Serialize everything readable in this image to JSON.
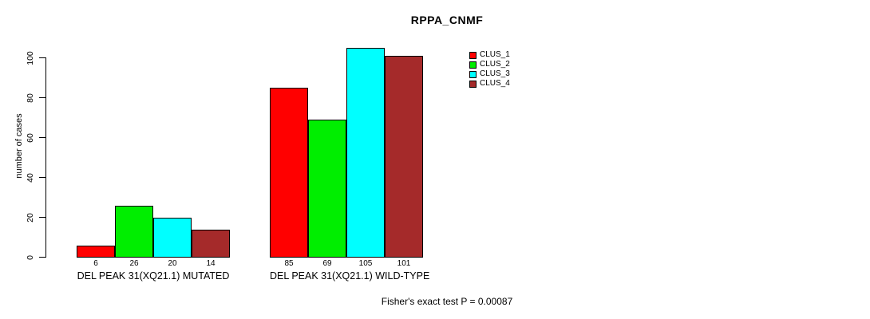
{
  "title": "RPPA_CNMF",
  "y_axis": {
    "label": "number of cases",
    "ticks": [
      0,
      20,
      40,
      60,
      80,
      100
    ]
  },
  "footer": {
    "annotation": "Fisher's exact test P = 0.00087"
  },
  "chart_data": {
    "type": "bar",
    "title": "RPPA_CNMF",
    "xlabel": "",
    "ylabel": "number of cases",
    "ylim": [
      0,
      100
    ],
    "yticks": [
      0,
      20,
      40,
      60,
      80,
      100
    ],
    "grid": false,
    "legend_position": "top-right",
    "categories": [
      "DEL PEAK 31(XQ21.1) MUTATED",
      "DEL PEAK 31(XQ21.1) WILD-TYPE"
    ],
    "series": [
      {
        "name": "CLUS_1",
        "color": "#FF0000",
        "values": [
          6,
          85
        ]
      },
      {
        "name": "CLUS_2",
        "color": "#00EE00",
        "values": [
          26,
          69
        ]
      },
      {
        "name": "CLUS_3",
        "color": "#00FFFF",
        "values": [
          20,
          105
        ]
      },
      {
        "name": "CLUS_4",
        "color": "#A52A2A",
        "values": [
          14,
          101
        ]
      }
    ],
    "value_labels_shown": true,
    "annotation": "Fisher's exact test P = 0.00087"
  }
}
